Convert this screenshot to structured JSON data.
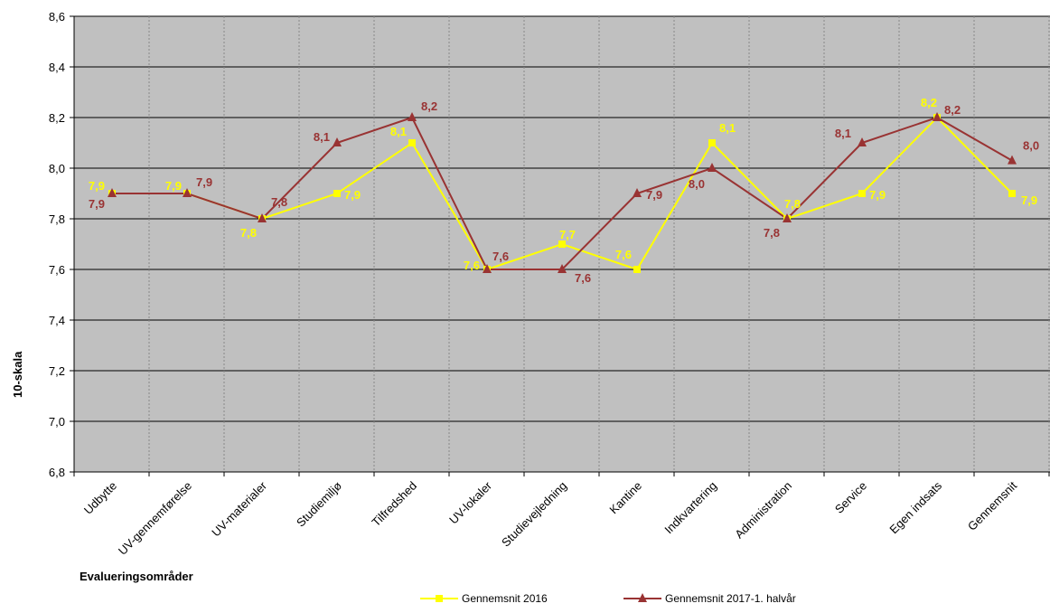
{
  "chart_data": {
    "type": "line",
    "xlabel": "Evalueringsområder",
    "ylabel": "10-skala",
    "ylim": [
      6.8,
      8.6
    ],
    "yticks": [
      "6,8",
      "7,0",
      "7,2",
      "7,4",
      "7,6",
      "7,8",
      "8,0",
      "8,2",
      "8,4",
      "8,6"
    ],
    "grid": true,
    "legend_position": "bottom",
    "plot_background": "#c0c0c0",
    "categories": [
      "Udbytte",
      "UV-gennemførelse",
      "UV-materialer",
      "Studiemiljø",
      "Tilfredshed",
      "UV-lokaler",
      "Studievejledning",
      "Kantine",
      "Indkvartering",
      "Administration",
      "Service",
      "Egen indsats",
      "Gennemsnit"
    ],
    "series": [
      {
        "name": "Gennemsnit 2016",
        "color": "#ffff00",
        "marker": "square",
        "values": [
          7.9,
          7.9,
          7.8,
          7.9,
          8.1,
          7.6,
          7.7,
          7.6,
          8.1,
          7.8,
          7.9,
          8.2,
          7.9
        ],
        "labels": [
          "7,9",
          "7,9",
          "7,8",
          "7,9",
          "8,1",
          "7,6",
          "7,7",
          "7,6",
          "8,1",
          "7,8",
          "7,9",
          "8,2",
          "7,9"
        ]
      },
      {
        "name": "Gennemsnit 2017-1. halvår",
        "color": "#993333",
        "marker": "triangle",
        "values": [
          7.9,
          7.9,
          7.8,
          8.1,
          8.2,
          7.6,
          7.6,
          7.9,
          8.0,
          7.8,
          8.1,
          8.2,
          8.03
        ],
        "labels": [
          "7,9",
          "7,9",
          "7,8",
          "8,1",
          "8,2",
          "7,6",
          "7,6",
          "7,9",
          "8,0",
          "7,8",
          "8,1",
          "8,2",
          "8,0"
        ]
      }
    ]
  }
}
